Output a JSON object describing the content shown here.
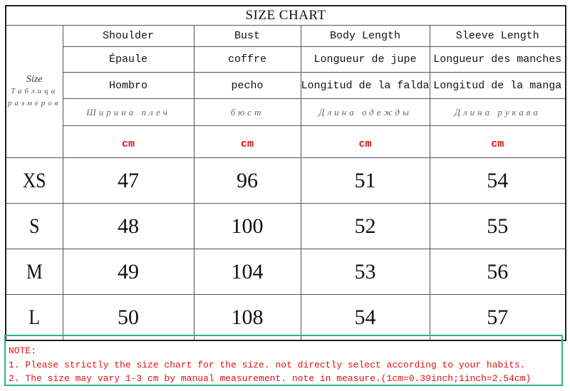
{
  "title": "SIZE CHART",
  "corner": {
    "en": "Size",
    "ru": "Таблица размеров"
  },
  "columns": [
    {
      "en": "Shoulder",
      "fr": "Épaule",
      "es": "Hombro",
      "ru": "Ширина плеч",
      "unit": "cm"
    },
    {
      "en": "Bust",
      "fr": "coffre",
      "es": "pecho",
      "ru": "бюст",
      "unit": "cm"
    },
    {
      "en": "Body Length",
      "fr": "Longueur de jupe",
      "es": "Longitud de la falda",
      "ru": "Длина одежды",
      "unit": "cm"
    },
    {
      "en": "Sleeve Length",
      "fr": "Longueur des manches",
      "es": "Longitud de la manga",
      "ru": "Длина рукава",
      "unit": "cm"
    }
  ],
  "rows": [
    {
      "size": "XS",
      "values": [
        "47",
        "96",
        "51",
        "54"
      ]
    },
    {
      "size": "S",
      "values": [
        "48",
        "100",
        "52",
        "55"
      ]
    },
    {
      "size": "M",
      "values": [
        "49",
        "104",
        "53",
        "56"
      ]
    },
    {
      "size": "L",
      "values": [
        "50",
        "108",
        "54",
        "57"
      ]
    }
  ],
  "note": {
    "heading": "NOTE:",
    "lines": [
      "1. Please strictly the size chart for the size. not directly select according to your habits.",
      "2. The size may vary 1-3 cm by manual measurement. note in measure.(1cm=0.39inch;1inch=2.54cm)"
    ]
  },
  "colors": {
    "unit": "#e01010",
    "note_text": "#e01010",
    "note_border": "#2fb57a"
  }
}
